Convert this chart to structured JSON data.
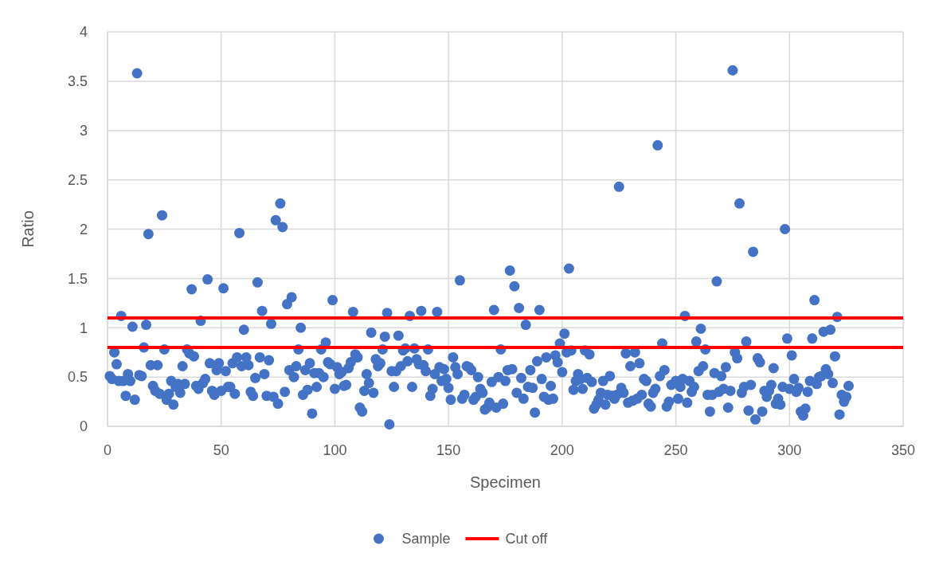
{
  "chart_data": {
    "type": "scatter",
    "xlabel": "Specimen",
    "ylabel": "Ratio",
    "xlim": [
      0,
      350
    ],
    "xticks": [
      0,
      50,
      100,
      150,
      200,
      250,
      300,
      350
    ],
    "ylim": [
      0,
      4
    ],
    "yticks": [
      0,
      0.5,
      1,
      1.5,
      2,
      2.5,
      3,
      3.5,
      4
    ],
    "grid": true,
    "legend": "bottom",
    "marker": "circle",
    "series": [
      {
        "name": "Sample",
        "color": "#4472c4",
        "x": [
          1,
          2,
          3,
          4,
          5,
          6,
          7,
          8,
          9,
          10,
          11,
          12,
          13,
          14,
          15,
          16,
          17,
          18,
          19,
          20,
          21,
          22,
          23,
          24,
          25,
          26,
          27,
          28,
          29,
          30,
          31,
          32,
          33,
          34,
          35,
          36,
          37,
          38,
          39,
          40,
          41,
          42,
          43,
          44,
          45,
          46,
          47,
          48,
          49,
          50,
          51,
          52,
          53,
          54,
          55,
          56,
          57,
          58,
          59,
          60,
          61,
          62,
          63,
          64,
          65,
          66,
          67,
          68,
          69,
          70,
          71,
          72,
          73,
          74,
          75,
          76,
          77,
          78,
          79,
          80,
          81,
          82,
          83,
          84,
          85,
          86,
          87,
          88,
          89,
          90,
          91,
          92,
          93,
          94,
          95,
          96,
          97,
          98,
          99,
          100,
          101,
          102,
          103,
          104,
          105,
          106,
          107,
          108,
          109,
          110,
          111,
          112,
          113,
          114,
          115,
          116,
          117,
          118,
          119,
          120,
          121,
          122,
          123,
          124,
          125,
          126,
          127,
          128,
          129,
          130,
          131,
          132,
          133,
          134,
          135,
          136,
          137,
          138,
          139,
          140,
          141,
          142,
          143,
          144,
          145,
          146,
          147,
          148,
          149,
          150,
          151,
          152,
          153,
          154,
          155,
          156,
          157,
          158,
          159,
          160,
          161,
          162,
          163,
          164,
          165,
          166,
          167,
          168,
          169,
          170,
          171,
          172,
          173,
          174,
          175,
          176,
          177,
          178,
          179,
          180,
          181,
          182,
          183,
          184,
          185,
          186,
          187,
          188,
          189,
          190,
          191,
          192,
          193,
          194,
          195,
          196,
          197,
          198,
          199,
          200,
          201,
          202,
          203,
          204,
          205,
          206,
          207,
          208,
          209,
          210,
          211,
          212,
          213,
          214,
          215,
          216,
          217,
          218,
          219,
          220,
          221,
          222,
          223,
          224,
          225,
          226,
          227,
          228,
          229,
          230,
          231,
          232,
          233,
          234,
          235,
          236,
          237,
          238,
          239,
          240,
          241,
          242,
          243,
          244,
          245,
          246,
          247,
          248,
          250,
          251,
          252,
          253,
          254,
          255,
          256,
          257,
          258,
          259,
          260,
          261,
          262,
          263,
          264,
          265,
          266,
          267,
          268,
          269,
          270,
          271,
          272,
          273,
          274,
          275,
          276,
          277,
          278,
          279,
          280,
          281,
          282,
          283,
          284,
          285,
          286,
          287,
          288,
          289,
          290,
          291,
          292,
          293,
          294,
          295,
          296,
          297,
          298,
          299,
          300,
          301,
          302,
          303,
          304,
          305,
          306,
          307,
          308,
          309,
          310,
          311,
          312,
          313,
          314,
          315,
          316,
          317,
          318,
          319,
          320,
          321,
          322,
          323,
          324,
          325,
          326
        ],
        "values": [
          0.51,
          0.48,
          0.75,
          0.63,
          0.46,
          1.12,
          0.46,
          0.31,
          0.53,
          0.46,
          1.01,
          0.27,
          3.58,
          0.52,
          0.51,
          0.8,
          1.03,
          1.95,
          0.62,
          0.41,
          0.36,
          0.62,
          0.33,
          2.14,
          0.78,
          0.27,
          0.33,
          0.46,
          0.22,
          0.4,
          0.43,
          0.34,
          0.61,
          0.43,
          0.78,
          0.74,
          1.39,
          0.71,
          0.41,
          0.38,
          1.07,
          0.44,
          0.48,
          1.49,
          0.64,
          0.36,
          0.32,
          0.57,
          0.64,
          0.36,
          1.4,
          0.56,
          0.4,
          0.4,
          0.64,
          0.33,
          0.7,
          1.96,
          0.61,
          0.98,
          0.7,
          0.62,
          0.35,
          0.31,
          0.49,
          1.46,
          0.7,
          1.17,
          0.53,
          0.31,
          0.67,
          1.04,
          0.3,
          2.09,
          0.23,
          2.26,
          2.02,
          0.35,
          1.24,
          0.57,
          1.31,
          0.5,
          0.61,
          0.78,
          1.0,
          0.32,
          0.57,
          0.37,
          0.64,
          0.13,
          0.54,
          0.4,
          0.54,
          0.78,
          0.5,
          0.85,
          0.65,
          0.63,
          1.28,
          0.38,
          0.6,
          0.53,
          0.55,
          0.41,
          0.42,
          0.59,
          0.65,
          1.16,
          0.73,
          0.7,
          0.19,
          0.15,
          0.36,
          0.53,
          0.44,
          0.95,
          0.34,
          0.68,
          0.61,
          0.64,
          0.78,
          0.91,
          1.15,
          0.02,
          0.56,
          0.4,
          0.56,
          0.92,
          0.61,
          0.77,
          0.79,
          0.66,
          1.12,
          0.4,
          0.79,
          0.68,
          0.63,
          1.17,
          0.62,
          0.56,
          0.78,
          0.31,
          0.38,
          0.53,
          1.16,
          0.6,
          0.46,
          0.58,
          0.48,
          0.39,
          0.27,
          0.7,
          0.6,
          0.53,
          1.48,
          0.28,
          0.32,
          0.61,
          0.6,
          0.57,
          0.27,
          0.3,
          0.5,
          0.38,
          0.34,
          0.17,
          0.19,
          0.24,
          0.45,
          1.18,
          0.19,
          0.5,
          0.78,
          0.23,
          0.46,
          0.57,
          1.58,
          0.58,
          1.42,
          0.34,
          1.2,
          0.49,
          0.28,
          1.03,
          0.4,
          0.57,
          0.39,
          0.14,
          0.66,
          1.18,
          0.48,
          0.3,
          0.7,
          0.27,
          0.41,
          0.28,
          0.72,
          0.65,
          0.84,
          0.55,
          0.94,
          0.75,
          1.6,
          0.77,
          0.37,
          0.46,
          0.53,
          0.48,
          0.38,
          0.77,
          0.49,
          0.73,
          0.45,
          0.18,
          0.22,
          0.27,
          0.34,
          0.46,
          0.22,
          0.32,
          0.51,
          0.31,
          0.28,
          0.32,
          2.43,
          0.39,
          0.34,
          0.74,
          0.24,
          0.61,
          0.26,
          0.75,
          0.28,
          0.64,
          0.32,
          0.48,
          0.46,
          0.23,
          0.2,
          0.34,
          0.38,
          2.85,
          0.51,
          0.84,
          0.57,
          0.2,
          0.25,
          0.42,
          0.46,
          0.28,
          0.4,
          0.48,
          1.12,
          0.24,
          0.46,
          0.35,
          0.4,
          0.86,
          0.56,
          0.99,
          0.61,
          0.78,
          0.32,
          0.15,
          0.32,
          0.54,
          1.47,
          0.35,
          0.51,
          0.38,
          0.6,
          0.19,
          0.36,
          3.61,
          0.75,
          0.69,
          2.26,
          0.34,
          0.4,
          0.86,
          0.16,
          0.42,
          1.77,
          0.07,
          0.69,
          0.65,
          0.15,
          0.36,
          0.3,
          0.36,
          0.42,
          0.59,
          0.23,
          0.28,
          0.22,
          0.4,
          2.0,
          0.89,
          0.38,
          0.72,
          0.48,
          0.35,
          0.39,
          0.15,
          0.11,
          0.18,
          0.35,
          0.46,
          0.89,
          1.28,
          0.43,
          0.5,
          0.51,
          0.96,
          0.58,
          0.53,
          0.98,
          0.44,
          0.71,
          1.11,
          0.12,
          0.32,
          0.25,
          0.3,
          0.41
        ]
      },
      {
        "name": "Cut off",
        "color": "#ff0000",
        "type": "line",
        "marker": "none",
        "x": [
          0,
          350
        ],
        "values": [
          1.1,
          1.1
        ]
      },
      {
        "color": "#ff0000",
        "type": "line",
        "marker": "none",
        "x": [
          0,
          350
        ],
        "values": [
          0.8,
          0.8
        ]
      }
    ]
  }
}
